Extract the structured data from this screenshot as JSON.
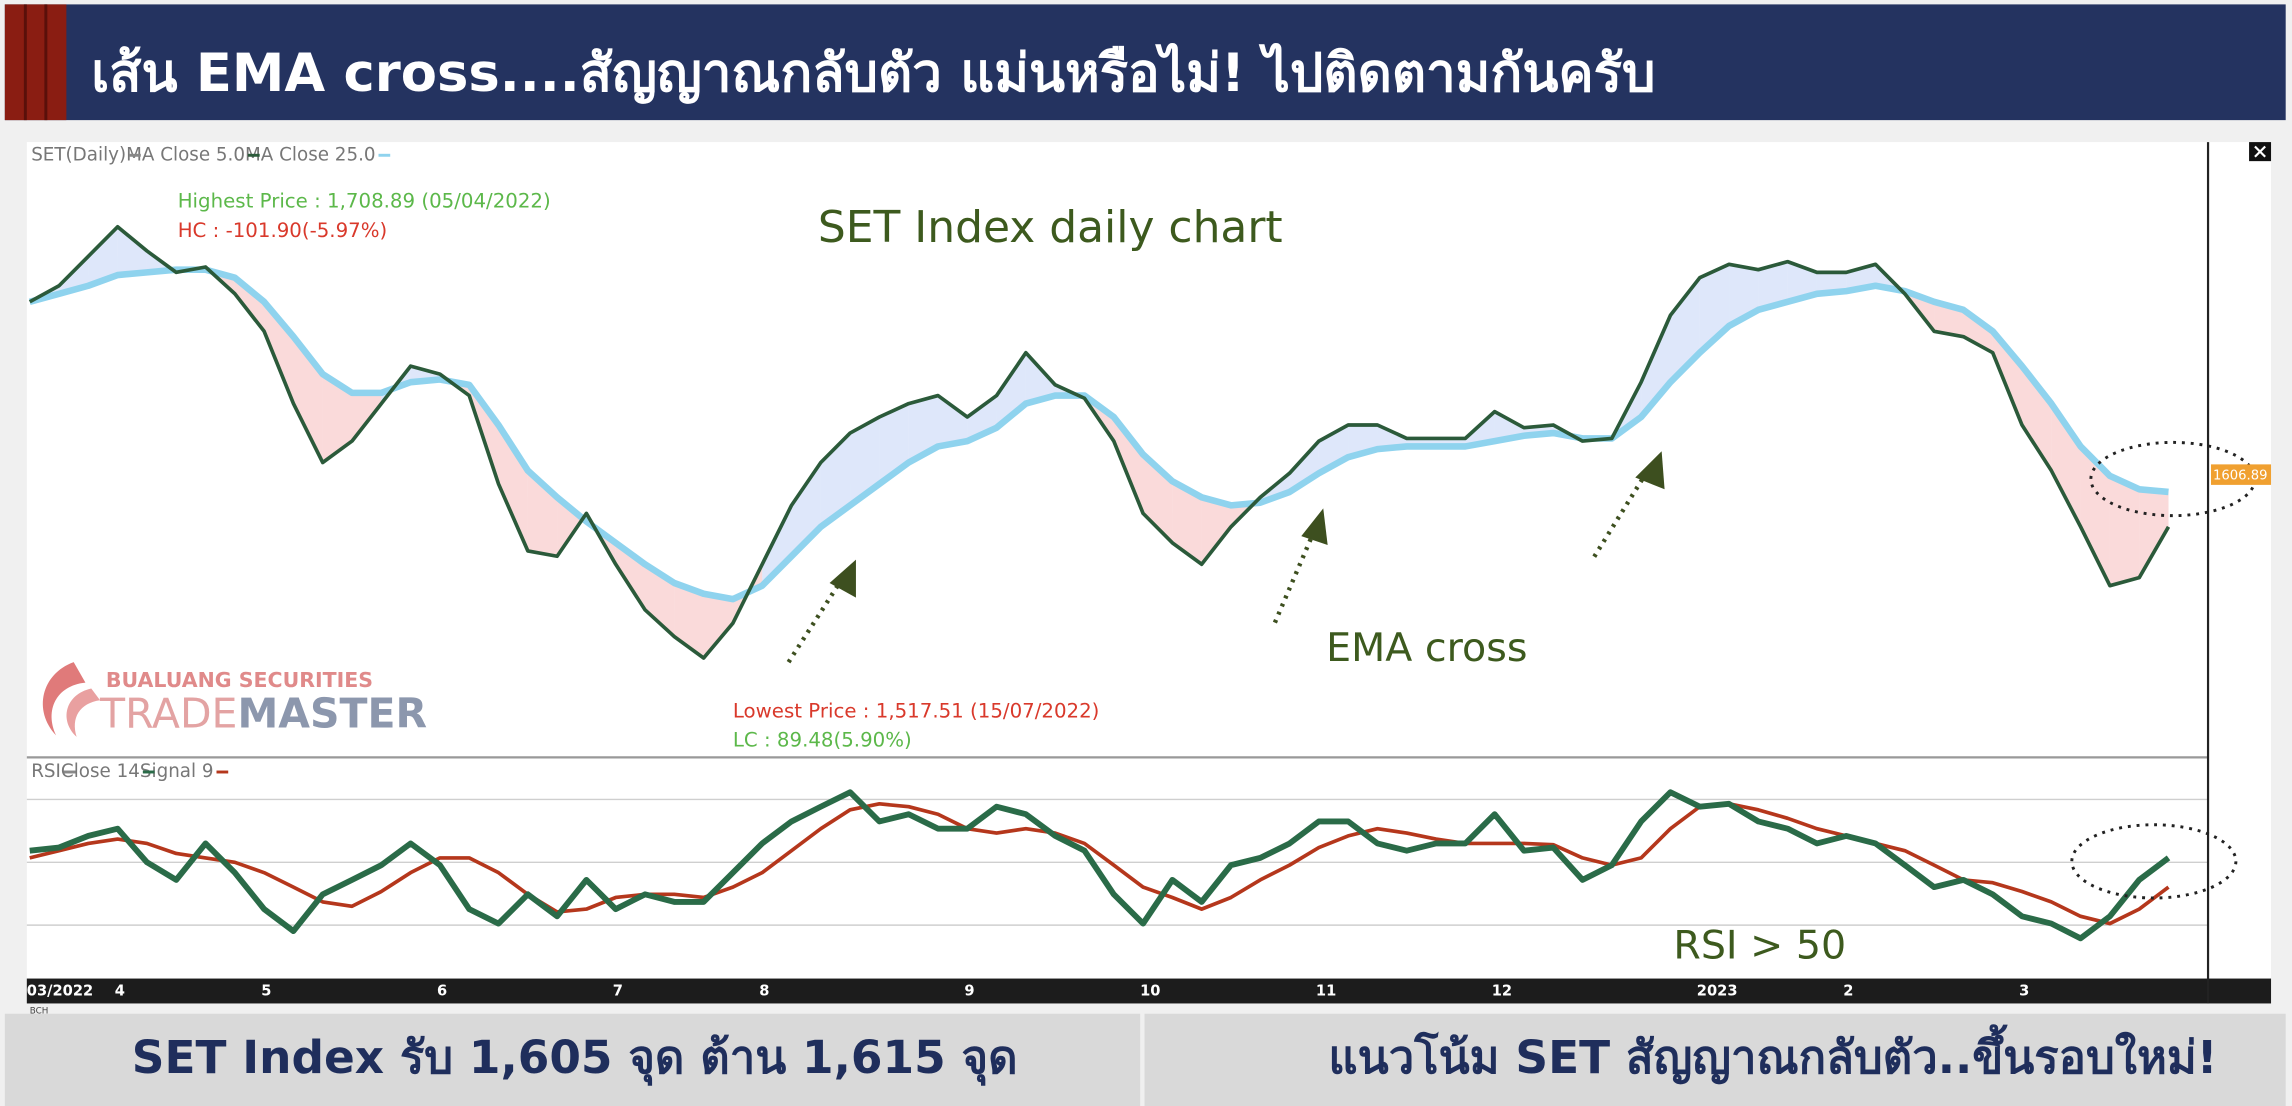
{
  "header": {
    "title": "เส้น EMA cross....สัญญาณกลับตัว แม่นหรือไม่! ไปติดตามกันครับ"
  },
  "logo": {
    "line1": "BUALUANG SECURITIES",
    "line2a": "TRADE",
    "line2b": "MASTER"
  },
  "chart_data": [
    {
      "type": "line",
      "title": "SET(Daily)",
      "annotations": [
        "Highest Price : 1,708.89 (05/04/2022)",
        "HC : -101.90(-5.97%)",
        "SET Index daily chart",
        "EMA cross",
        "Lowest Price : 1,517.51 (15/07/2022)",
        "LC : 89.48(5.90%)"
      ],
      "last_price_label": "1606.89",
      "categories": [
        "03/2022",
        null,
        null,
        "4",
        null,
        null,
        null,
        null,
        "5",
        null,
        null,
        null,
        null,
        null,
        "6",
        null,
        null,
        null,
        null,
        null,
        "7",
        null,
        null,
        null,
        null,
        "8",
        null,
        null,
        null,
        null,
        null,
        null,
        "9",
        null,
        null,
        null,
        null,
        null,
        "10",
        null,
        null,
        null,
        null,
        null,
        "11",
        null,
        null,
        null,
        null,
        null,
        "12",
        null,
        null,
        null,
        null,
        null,
        null,
        "2023",
        null,
        null,
        null,
        null,
        "2",
        null,
        null,
        null,
        null,
        null,
        "3",
        null,
        null,
        null,
        null,
        null
      ],
      "series": [
        {
          "name": "MA  Close 5.0",
          "color": "#2b5a3a",
          "values": [
            1673,
            1679,
            1690,
            1701,
            1692,
            1684,
            1686,
            1676,
            1662,
            1635,
            1613,
            1621,
            1635,
            1649,
            1646,
            1638,
            1605,
            1580,
            1578,
            1594,
            1575,
            1558,
            1548,
            1540,
            1553,
            1575,
            1597,
            1613,
            1624,
            1630,
            1635,
            1638,
            1630,
            1638,
            1654,
            1642,
            1637,
            1621,
            1594,
            1583,
            1575,
            1589,
            1600,
            1609,
            1621,
            1627,
            1627,
            1622,
            1622,
            1622,
            1632,
            1626,
            1627,
            1621,
            1622,
            1643,
            1668,
            1682,
            1687,
            1685,
            1688,
            1684,
            1684,
            1687,
            1676,
            1662,
            1660,
            1654,
            1627,
            1610,
            1589,
            1567,
            1570,
            1589
          ]
        },
        {
          "name": "MA  Close 25.0",
          "color": "#8fd3ee",
          "values": [
            1673,
            1676,
            1679,
            1683,
            1684,
            1685,
            1685,
            1682,
            1673,
            1660,
            1646,
            1639,
            1639,
            1643,
            1644,
            1642,
            1627,
            1610,
            1600,
            1591,
            1583,
            1575,
            1568,
            1564,
            1562,
            1567,
            1578,
            1589,
            1597,
            1605,
            1613,
            1619,
            1621,
            1626,
            1635,
            1638,
            1638,
            1630,
            1616,
            1606,
            1600,
            1597,
            1598,
            1602,
            1609,
            1615,
            1618,
            1619,
            1619,
            1619,
            1621,
            1623,
            1624,
            1622,
            1622,
            1630,
            1643,
            1654,
            1664,
            1670,
            1673,
            1676,
            1677,
            1679,
            1677,
            1673,
            1670,
            1662,
            1649,
            1635,
            1619,
            1608,
            1603,
            1602
          ]
        }
      ],
      "ylim": [
        1504,
        1731
      ]
    },
    {
      "type": "line",
      "title": "RSI",
      "annotations": [
        "RSI > 50"
      ],
      "footnote": "BCH",
      "categories": [
        "03/2022",
        null,
        null,
        "4",
        null,
        null,
        null,
        null,
        "5",
        null,
        null,
        null,
        null,
        null,
        "6",
        null,
        null,
        null,
        null,
        null,
        "7",
        null,
        null,
        null,
        null,
        "8",
        null,
        null,
        null,
        null,
        null,
        null,
        "9",
        null,
        null,
        null,
        null,
        null,
        "10",
        null,
        null,
        null,
        null,
        null,
        "11",
        null,
        null,
        null,
        null,
        null,
        "12",
        null,
        null,
        null,
        null,
        null,
        null,
        "2023",
        null,
        null,
        null,
        null,
        "2",
        null,
        null,
        null,
        null,
        null,
        "3",
        null,
        null,
        null,
        null,
        null
      ],
      "series": [
        {
          "name": "Close 14",
          "color": "#2a6b48",
          "values": [
            53.7,
            54.7,
            58.4,
            60.7,
            50,
            44.4,
            56,
            46.7,
            35.1,
            28.1,
            39.8,
            44.4,
            49.1,
            56,
            49.1,
            35.1,
            30.5,
            39.8,
            32.8,
            44.4,
            35.1,
            39.8,
            37.4,
            37.4,
            46.7,
            56,
            63,
            67.7,
            72.3,
            63,
            65.3,
            60.7,
            60.7,
            67.7,
            65.3,
            58.4,
            53.7,
            39.8,
            30.5,
            44.4,
            37.4,
            49.1,
            51.4,
            56,
            63,
            63,
            56,
            53.7,
            56,
            56,
            65.3,
            53.7,
            54.7,
            44.4,
            49.1,
            63,
            72.3,
            67.7,
            68.6,
            63,
            60.7,
            56,
            58.4,
            56,
            49.1,
            42.1,
            44.4,
            39.8,
            32.8,
            30.5,
            25.8,
            32.8,
            44.4,
            51.4
          ]
        },
        {
          "name": "Signal  9",
          "color": "#b5371c",
          "values": [
            51.4,
            53.7,
            56,
            57.4,
            56,
            52.8,
            51.4,
            50,
            46.7,
            42.1,
            37.4,
            36,
            40.7,
            46.7,
            51.4,
            51.4,
            46.7,
            39.8,
            34.2,
            35.1,
            38.8,
            39.8,
            39.8,
            38.8,
            42.1,
            46.7,
            53.7,
            60.7,
            66.7,
            68.6,
            67.7,
            65.3,
            60.7,
            59.3,
            60.7,
            59.3,
            56,
            49.1,
            42.1,
            38.8,
            35.1,
            38.8,
            44.4,
            49.1,
            54.7,
            58.4,
            60.7,
            59.3,
            57.4,
            56,
            56,
            56,
            55.6,
            51.4,
            49.1,
            51.4,
            60.7,
            67.7,
            68.6,
            66.7,
            64,
            60.7,
            58.4,
            56,
            53.7,
            49.1,
            44.4,
            43.5,
            40.7,
            37.4,
            32.8,
            30.5,
            35.1,
            42.1
          ]
        }
      ],
      "ylim": [
        13,
        82
      ],
      "yticks": [
        30,
        50,
        70
      ],
      "grid": true
    }
  ],
  "footer": {
    "left": "SET Index รับ 1,605 จุด ต้าน 1,615 จุด",
    "right": "แนวโน้ม SET สัญญาณกลับตัว..ขึ้นรอบใหม่!"
  }
}
